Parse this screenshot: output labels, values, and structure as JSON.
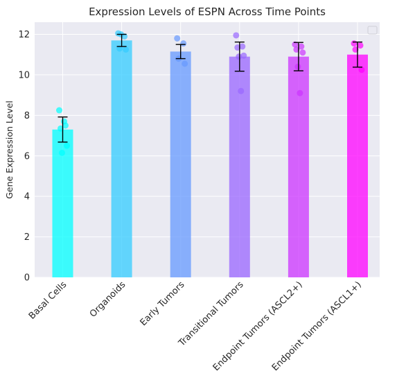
{
  "chart_data": {
    "type": "bar",
    "title": "Expression Levels of ESPN Across Time Points",
    "xlabel": "",
    "ylabel": "Gene Expression Level",
    "ylim": [
      0,
      12.6
    ],
    "yticks": [
      0,
      2,
      4,
      6,
      8,
      10,
      12
    ],
    "grid": true,
    "legend": "top-right (empty)",
    "categories": [
      "Basal Cells",
      "Organoids",
      "Early Tumors",
      "Transitional Tumors",
      "Endpoint Tumors (ASCL2+)",
      "Endpoint Tumors (ASCL1+)"
    ],
    "colors": [
      "#00ffff",
      "#33ccff",
      "#6699ff",
      "#9966ff",
      "#cc33ff",
      "#ff00ff"
    ],
    "values": [
      7.3,
      11.7,
      11.15,
      10.9,
      10.9,
      11.0
    ],
    "error": [
      0.62,
      0.3,
      0.35,
      0.72,
      0.7,
      0.62
    ],
    "points": [
      [
        8.25,
        7.5,
        7.35,
        6.5,
        6.15,
        7.7
      ],
      [
        12.05,
        11.9,
        11.3,
        11.25,
        12.0
      ],
      [
        11.8,
        11.55,
        10.8,
        10.55
      ],
      [
        11.95,
        11.4,
        11.35,
        10.95,
        10.9,
        9.2
      ],
      [
        11.5,
        11.4,
        11.25,
        11.1,
        10.4,
        9.1
      ],
      [
        11.55,
        11.45,
        11.25,
        10.25
      ]
    ]
  }
}
